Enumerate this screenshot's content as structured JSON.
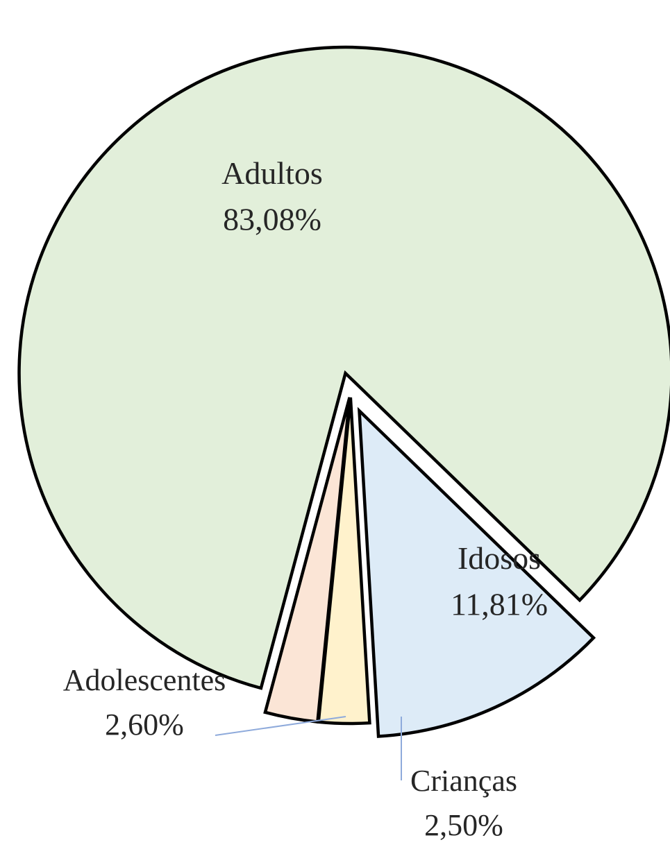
{
  "chart_data": {
    "type": "pie",
    "title": "",
    "categories": [
      "Adultos",
      "Idosos",
      "Crianças",
      "Adolescentes"
    ],
    "values": [
      83.08,
      11.81,
      2.5,
      2.6
    ],
    "value_labels": [
      "83,08%",
      "11,81%",
      "2,50%",
      "2,60%"
    ],
    "colors": [
      "#e2efda",
      "#ddebf7",
      "#fff2cc",
      "#fbe5d6"
    ],
    "edge_color": "#000000",
    "leader_color": "#8eaadb",
    "exploded": true,
    "legend": "none"
  }
}
